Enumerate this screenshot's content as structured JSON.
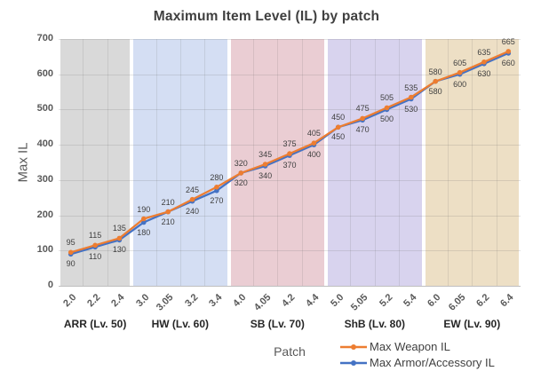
{
  "title": "Maximum Item Level (IL) by patch",
  "chart_data": {
    "type": "line",
    "title": "Maximum Item Level (IL) by patch",
    "xlabel": "Patch",
    "ylabel": "Max IL",
    "ylim": [
      0,
      700
    ],
    "y_ticks": [
      0,
      100,
      200,
      300,
      400,
      500,
      600,
      700
    ],
    "grid": true,
    "legend_position": "bottom-right",
    "categories": [
      "2.0",
      "2.2",
      "2.4",
      "3.0",
      "3.05",
      "3.2",
      "3.4",
      "4.0",
      "4.05",
      "4.2",
      "4.4",
      "5.0",
      "5.05",
      "5.2",
      "5.4",
      "6.0",
      "6.05",
      "6.2",
      "6.4"
    ],
    "series": [
      {
        "name": "Max Weapon IL",
        "color": "#ED7D31",
        "label_position": "above",
        "values": [
          95,
          115,
          135,
          190,
          210,
          245,
          280,
          320,
          345,
          375,
          405,
          450,
          475,
          505,
          535,
          580,
          605,
          635,
          665
        ]
      },
      {
        "name": "Max Armor/Accessory IL",
        "color": "#4472C4",
        "label_position": "below",
        "values": [
          90,
          110,
          130,
          180,
          210,
          240,
          270,
          320,
          340,
          370,
          400,
          450,
          470,
          500,
          530,
          580,
          600,
          630,
          660
        ]
      }
    ],
    "bands": [
      {
        "label": "ARR (Lv. 50)",
        "color": "#D9D9D9",
        "categories": [
          "2.0",
          "2.2",
          "2.4"
        ]
      },
      {
        "label": "HW (Lv. 60)",
        "color": "#D4DEF3",
        "categories": [
          "3.0",
          "3.05",
          "3.2",
          "3.4"
        ]
      },
      {
        "label": "SB (Lv. 70)",
        "color": "#EACDD3",
        "categories": [
          "4.0",
          "4.05",
          "4.2",
          "4.4"
        ]
      },
      {
        "label": "ShB (Lv. 80)",
        "color": "#D8D3EE",
        "categories": [
          "5.0",
          "5.05",
          "5.2",
          "5.4"
        ]
      },
      {
        "label": "EW (Lv. 90)",
        "color": "#EDDFC5",
        "categories": [
          "6.0",
          "6.05",
          "6.2",
          "6.4"
        ]
      }
    ]
  }
}
